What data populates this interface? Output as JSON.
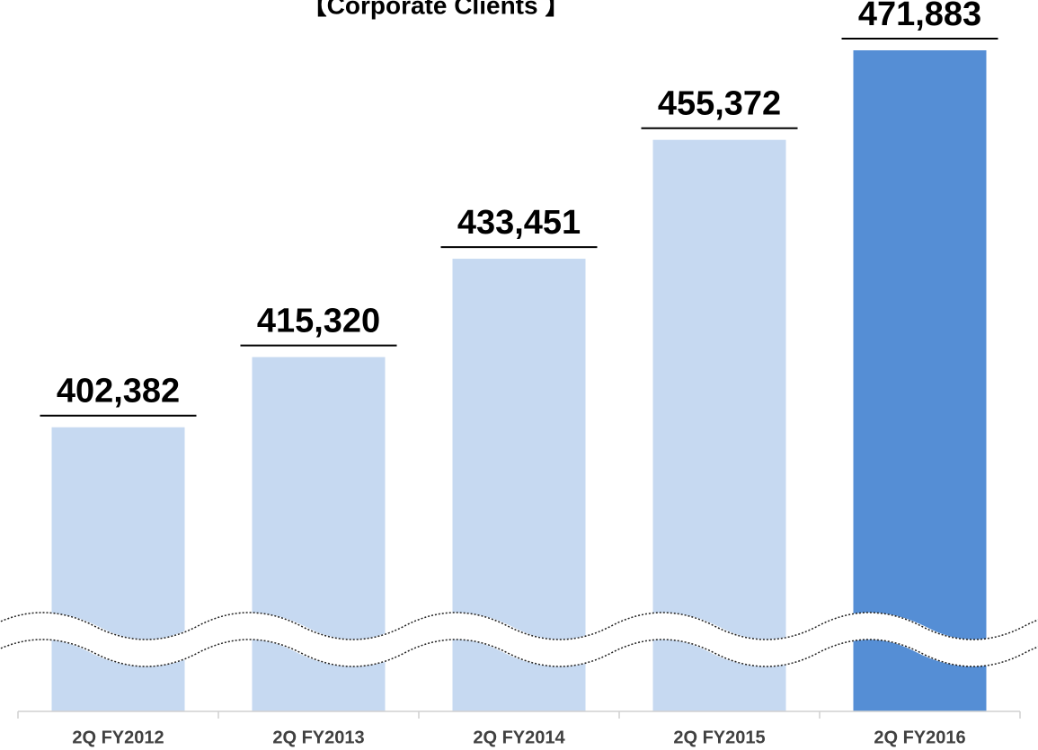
{
  "chart_data": {
    "type": "bar",
    "title": "【Corporate Clients 】",
    "categories": [
      "2Q FY2012",
      "2Q FY2013",
      "2Q FY2014",
      "2Q FY2015",
      "2Q FY2016"
    ],
    "values": [
      402382,
      415320,
      433451,
      455372,
      471883
    ],
    "value_labels": [
      "402,382",
      "415,320",
      "433,451",
      "455,372",
      "471,883"
    ],
    "colors": [
      "#c6d9f1",
      "#c6d9f1",
      "#c6d9f1",
      "#c6d9f1",
      "#558ed5"
    ],
    "ylim": [
      350000,
      480000
    ]
  }
}
